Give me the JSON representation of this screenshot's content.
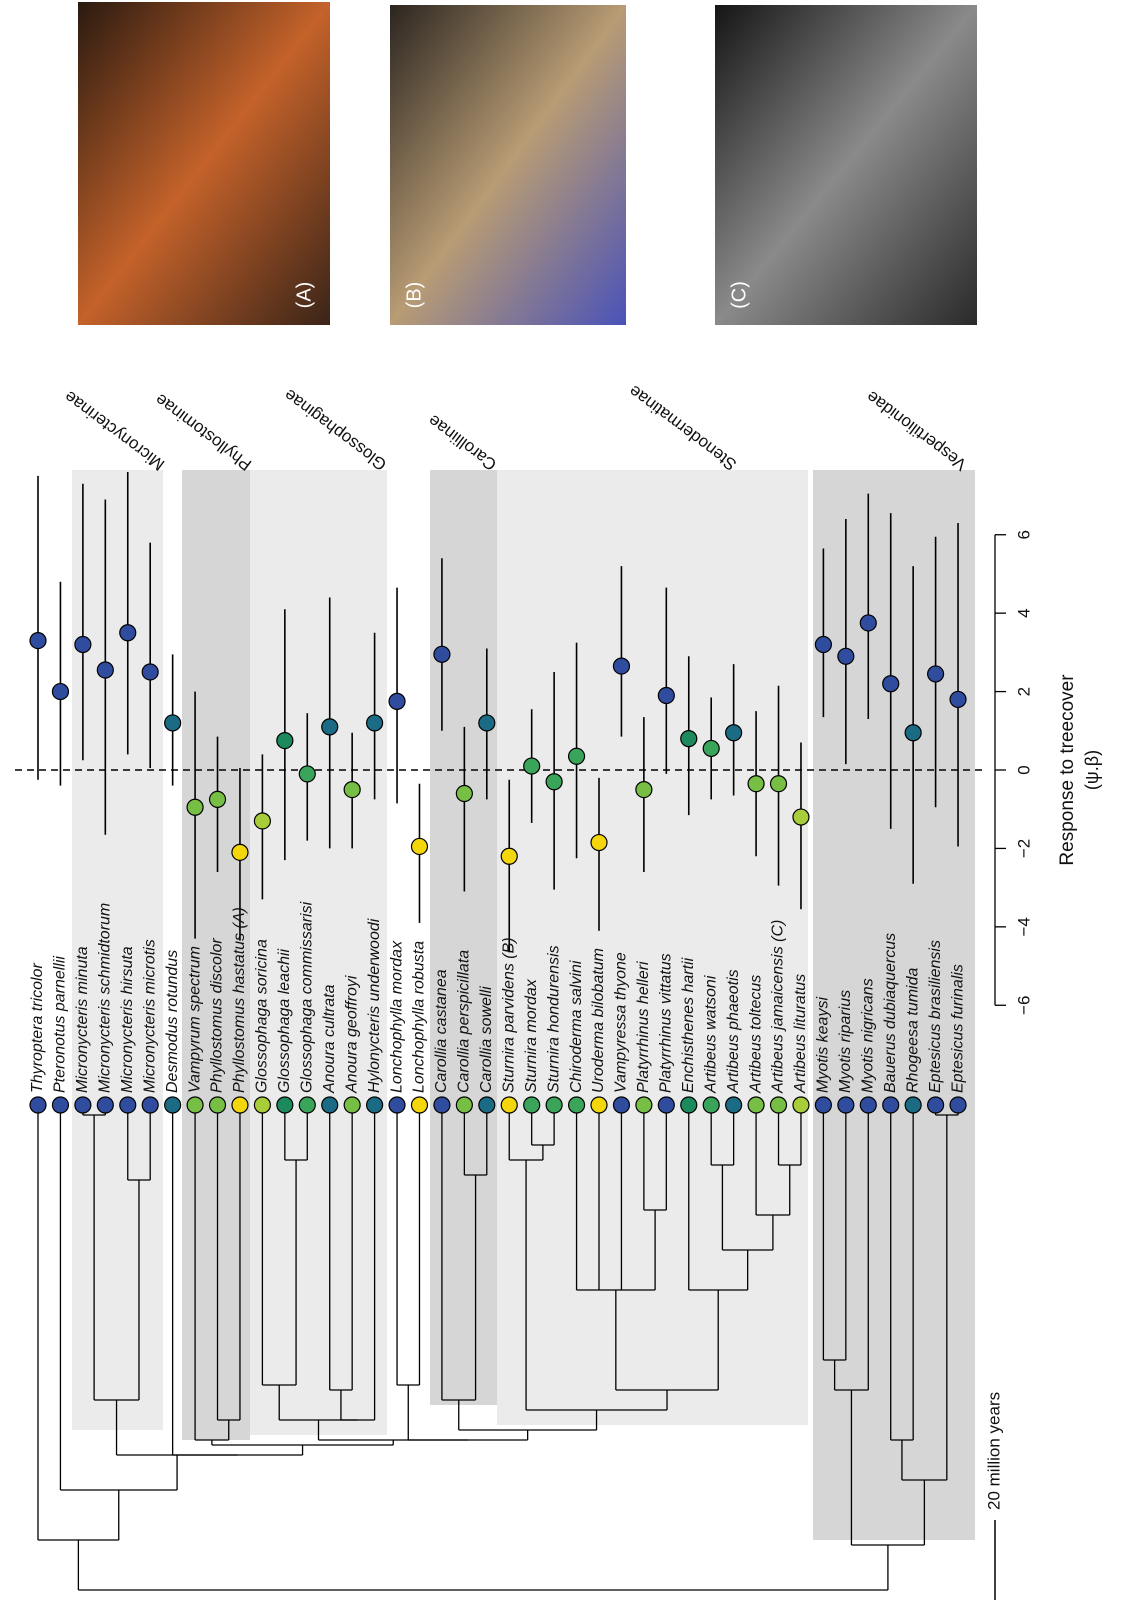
{
  "chart_data": {
    "type": "forest",
    "species": [
      "Thyroptera tricolor",
      "Pteronotus parnellii",
      "Micronycteris minuta",
      "Micronycteris schmidtorum",
      "Micronycteris hirsuta",
      "Micronycteris microtis",
      "Desmodus rotundus",
      "Vampyrum spectrum",
      "Phyllostomus discolor",
      "Phyllostomus hastatus (A)",
      "Glossophaga soricina",
      "Glossophaga leachii",
      "Glossophaga commissarisi",
      "Anoura cultrata",
      "Anoura geoffroyi",
      "Hylonycteris underwoodi",
      "Lonchophylla mordax",
      "Lonchophylla robusta",
      "Carollia castanea",
      "Carollia perspicillata",
      "Carollia sowelli",
      "Sturnira parvidens (B)",
      "Sturnira mordax",
      "Sturnira hondurensis",
      "Chiroderma salvini",
      "Uroderma bilobatum",
      "Vampyressa thyone",
      "Platyrrhinus helleri",
      "Platyrrhinus vittatus",
      "Enchisthenes hartii",
      "Artibeus watsoni",
      "Artibeus phaeotis",
      "Artibeus toltecus",
      "Artibeus jamaicensis (C)",
      "Artibeus lituratus",
      "Myotis keaysi",
      "Myotis riparius",
      "Myotis nigricans",
      "Bauerus dubiaquercus",
      "Rhogeesa tumida",
      "Eptesicus brasiliensis",
      "Eptesicus furinalis"
    ],
    "values": [
      3.3,
      2.0,
      3.2,
      2.55,
      3.5,
      2.5,
      1.2,
      -0.95,
      -0.75,
      -2.1,
      -1.3,
      0.75,
      -0.1,
      1.1,
      -0.5,
      1.2,
      1.75,
      -1.95,
      2.95,
      -0.6,
      1.2,
      -2.2,
      0.1,
      -0.3,
      0.35,
      -1.85,
      2.65,
      -0.5,
      1.9,
      0.8,
      0.55,
      0.95,
      -0.35,
      -0.35,
      -1.2,
      3.2,
      2.9,
      3.75,
      2.2,
      0.95,
      2.45,
      1.8
    ],
    "ci_lower": [
      -0.25,
      -0.4,
      0.25,
      -1.65,
      0.4,
      0.05,
      -0.4,
      -4.3,
      -2.6,
      -4.35,
      -3.3,
      -2.3,
      -1.8,
      -2.0,
      -2.0,
      -0.75,
      -0.85,
      -3.9,
      1.0,
      -3.1,
      -0.75,
      -4.65,
      -1.35,
      -3.05,
      -2.25,
      -4.1,
      0.85,
      -2.6,
      -0.1,
      -1.15,
      -0.75,
      -0.65,
      -2.2,
      -2.95,
      -3.55,
      1.35,
      0.15,
      1.3,
      -1.5,
      -2.9,
      -0.95,
      -1.95
    ],
    "ci_upper": [
      7.5,
      4.8,
      7.3,
      6.9,
      7.6,
      5.8,
      2.95,
      2.0,
      0.85,
      0.05,
      0.4,
      4.1,
      1.45,
      4.4,
      0.95,
      3.5,
      4.65,
      -0.35,
      5.4,
      1.1,
      3.1,
      -0.25,
      1.55,
      2.5,
      3.25,
      -0.2,
      5.2,
      1.35,
      4.65,
      2.9,
      1.85,
      2.7,
      1.5,
      2.15,
      0.7,
      5.65,
      6.4,
      7.05,
      6.55,
      5.2,
      5.95,
      6.3
    ],
    "colors": [
      "#2f4c9e",
      "#2f4c9e",
      "#2f4c9e",
      "#2f4c9e",
      "#2f4c9e",
      "#2f4c9e",
      "#1b6b84",
      "#77bf44",
      "#77bf44",
      "#f4d60c",
      "#a8cc3a",
      "#1d8a5e",
      "#3aa45a",
      "#1b6b84",
      "#77bf44",
      "#1b6b84",
      "#2f4c9e",
      "#f4d60c",
      "#2f4c9e",
      "#77bf44",
      "#1b6b84",
      "#f4d60c",
      "#3aa45a",
      "#3aa45a",
      "#3aa45a",
      "#f4d60c",
      "#2f4c9e",
      "#77bf44",
      "#2f4c9e",
      "#1d8a5e",
      "#3aa45a",
      "#1b6b84",
      "#77bf44",
      "#77bf44",
      "#a8cc3a",
      "#2f4c9e",
      "#2f4c9e",
      "#2f4c9e",
      "#2f4c9e",
      "#1b6b84",
      "#2f4c9e",
      "#2f4c9e"
    ],
    "ylim": [
      -7.6,
      7.6
    ],
    "yticks": [
      {
        "value": -6,
        "label": "−6"
      },
      {
        "value": -4,
        "label": "−4"
      },
      {
        "value": -2,
        "label": "−2"
      },
      0,
      2,
      4,
      6
    ],
    "reference_line": 0,
    "ylabel": "Response to treecover",
    "ylabel_symbol": "(ψ.β)",
    "clades": [
      "Micronycterinae",
      "Phyllostominae",
      "Glossophaginae",
      "Carolliinae",
      "Stenodermatinae",
      "Vespertilionidae"
    ],
    "scale_bar": "20 million years",
    "photos": [
      "(A)",
      "(B)",
      "(C)"
    ]
  }
}
